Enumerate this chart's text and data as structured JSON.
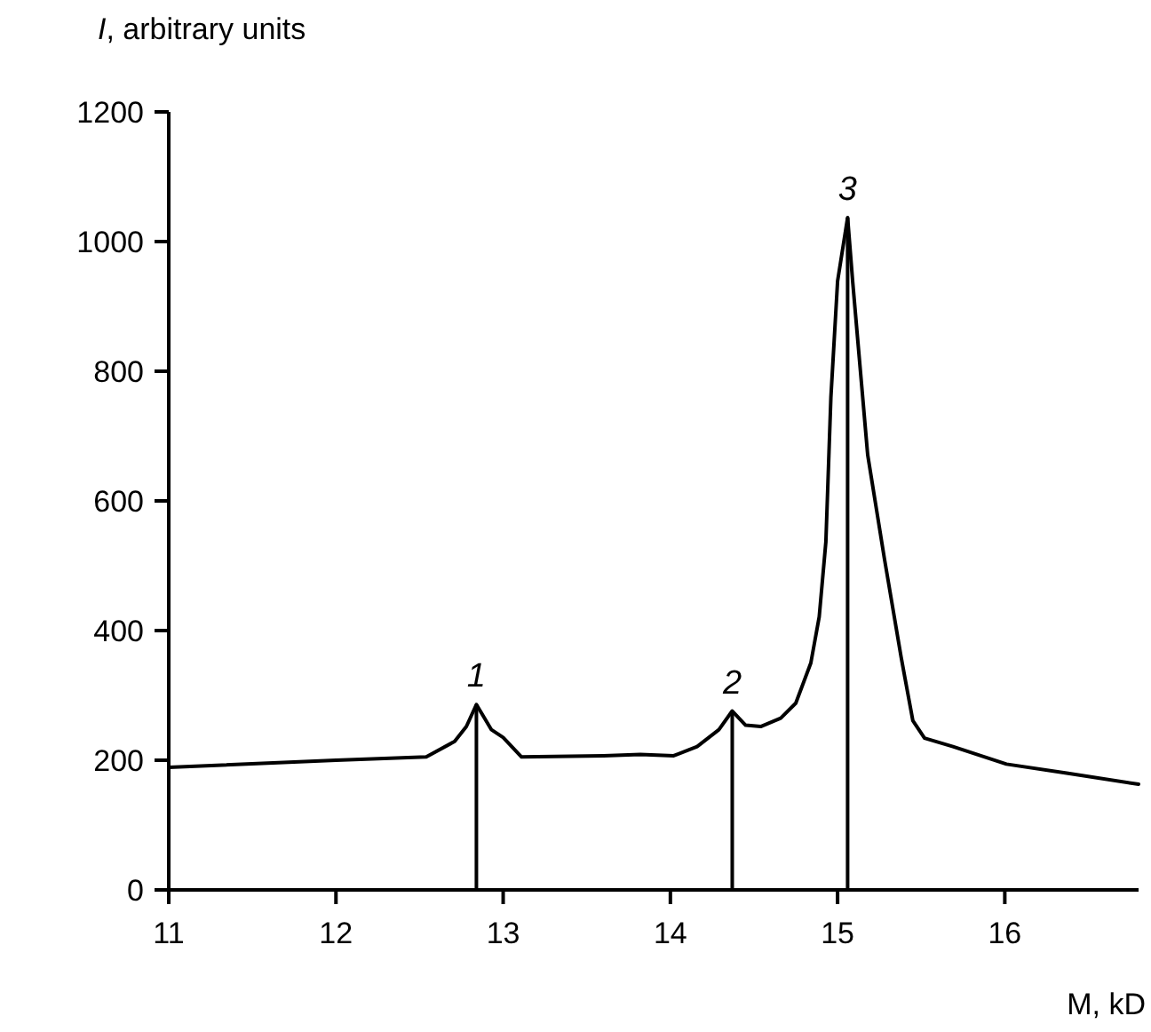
{
  "chart_data": {
    "type": "line",
    "xlabel": "M, kD",
    "ylabel": "I, arbitrary units",
    "xlim": [
      11,
      16.8
    ],
    "xticks": [
      11,
      12,
      13,
      14,
      15,
      16
    ],
    "ylim": [
      0,
      1200
    ],
    "yticks": [
      0,
      200,
      400,
      600,
      800,
      1000,
      1200
    ],
    "grid": false,
    "marker": "none",
    "line_style": "solid",
    "series": [
      {
        "color": "#000000",
        "x": [
          11.0,
          12.0,
          12.54,
          12.71,
          12.78,
          12.84,
          12.93,
          13.0,
          13.11,
          13.6,
          13.82,
          14.02,
          14.16,
          14.29,
          14.37,
          14.45,
          14.54,
          14.66,
          14.75,
          14.84,
          14.89,
          14.93,
          14.96,
          15.0,
          15.06,
          15.09,
          15.18,
          15.28,
          15.38,
          15.45,
          15.52,
          15.69,
          16.01,
          16.37,
          16.8
        ],
        "values": [
          189,
          200,
          205,
          229,
          252,
          286,
          247,
          235,
          205,
          207,
          209,
          207,
          221,
          247,
          276,
          254,
          252,
          265,
          288,
          350,
          421,
          537,
          760,
          939,
          1037,
          939,
          671,
          511,
          359,
          261,
          234,
          221,
          194,
          180,
          163
        ]
      },
      {
        "type": "bar",
        "color": "#000000",
        "x": [
          12.84,
          14.37,
          15.06
        ],
        "values": [
          286,
          276,
          1037
        ]
      }
    ],
    "annotations": [
      {
        "text": "1",
        "x": 12.84,
        "y": 286
      },
      {
        "text": "2",
        "x": 14.37,
        "y": 276
      },
      {
        "text": "3",
        "x": 15.06,
        "y": 1037
      }
    ]
  }
}
